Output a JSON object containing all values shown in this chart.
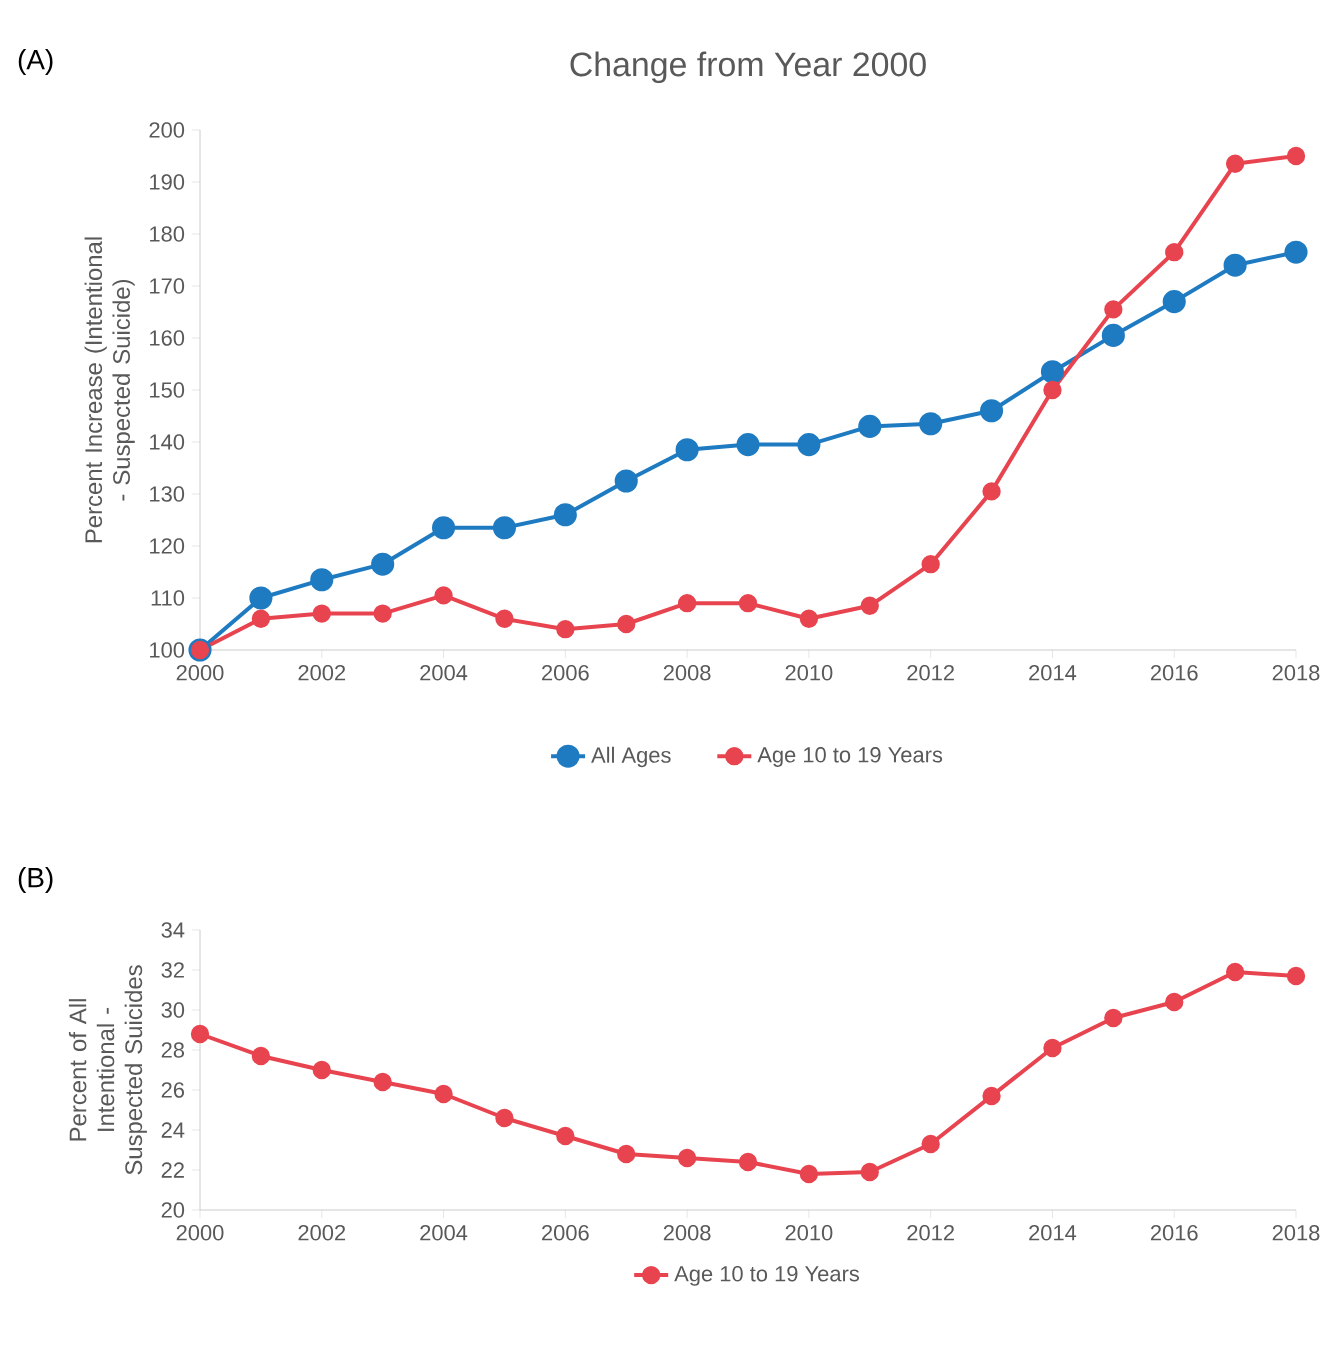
{
  "chart_data": [
    {
      "type": "line",
      "title": "Change from Year 2000",
      "annotations": [
        "(A)"
      ],
      "ylabel": "Percent Increase (Intentional - Suspected Suicide)",
      "x": [
        2000,
        2001,
        2002,
        2003,
        2004,
        2005,
        2006,
        2007,
        2008,
        2009,
        2010,
        2011,
        2012,
        2013,
        2014,
        2015,
        2016,
        2017,
        2018
      ],
      "xlim": [
        2000,
        2018
      ],
      "xticks": [
        2000,
        2002,
        2004,
        2006,
        2008,
        2010,
        2012,
        2014,
        2016,
        2018
      ],
      "ylim": [
        100,
        200
      ],
      "yticks": [
        100,
        110,
        120,
        130,
        140,
        150,
        160,
        170,
        180,
        190,
        200
      ],
      "legend": "bottom",
      "marker": "circle",
      "series": [
        {
          "name": "All Ages",
          "color": "#1f7bc1",
          "values": [
            100,
            110,
            113.5,
            116.5,
            123.5,
            123.5,
            126,
            132.5,
            138.5,
            139.5,
            139.5,
            143,
            143.5,
            146,
            153.5,
            160.5,
            167,
            174,
            176.5
          ]
        },
        {
          "name": "Age 10 to 19 Years",
          "color": "#e8444f",
          "values": [
            100,
            106,
            107,
            107,
            110.5,
            106,
            104,
            105,
            109,
            109,
            106,
            108.5,
            116.5,
            130.5,
            150,
            165.5,
            176.5,
            193.5,
            195
          ]
        }
      ]
    },
    {
      "type": "line",
      "annotations": [
        "(B)"
      ],
      "ylabel": "Percent of All Intentional - Suspected Suicides",
      "x": [
        2000,
        2001,
        2002,
        2003,
        2004,
        2005,
        2006,
        2007,
        2008,
        2009,
        2010,
        2011,
        2012,
        2013,
        2014,
        2015,
        2016,
        2017,
        2018
      ],
      "xlim": [
        2000,
        2018
      ],
      "xticks": [
        2000,
        2002,
        2004,
        2006,
        2008,
        2010,
        2012,
        2014,
        2016,
        2018
      ],
      "ylim": [
        20,
        34
      ],
      "yticks": [
        20,
        22,
        24,
        26,
        28,
        30,
        32,
        34
      ],
      "legend": "bottom",
      "marker": "circle",
      "series": [
        {
          "name": "Age 10 to 19 Years",
          "color": "#e8444f",
          "values": [
            28.8,
            27.7,
            27.0,
            26.4,
            25.8,
            24.6,
            23.7,
            22.8,
            22.6,
            22.4,
            21.8,
            21.9,
            23.3,
            25.7,
            28.1,
            29.6,
            30.4,
            31.9,
            31.7
          ]
        }
      ]
    }
  ]
}
